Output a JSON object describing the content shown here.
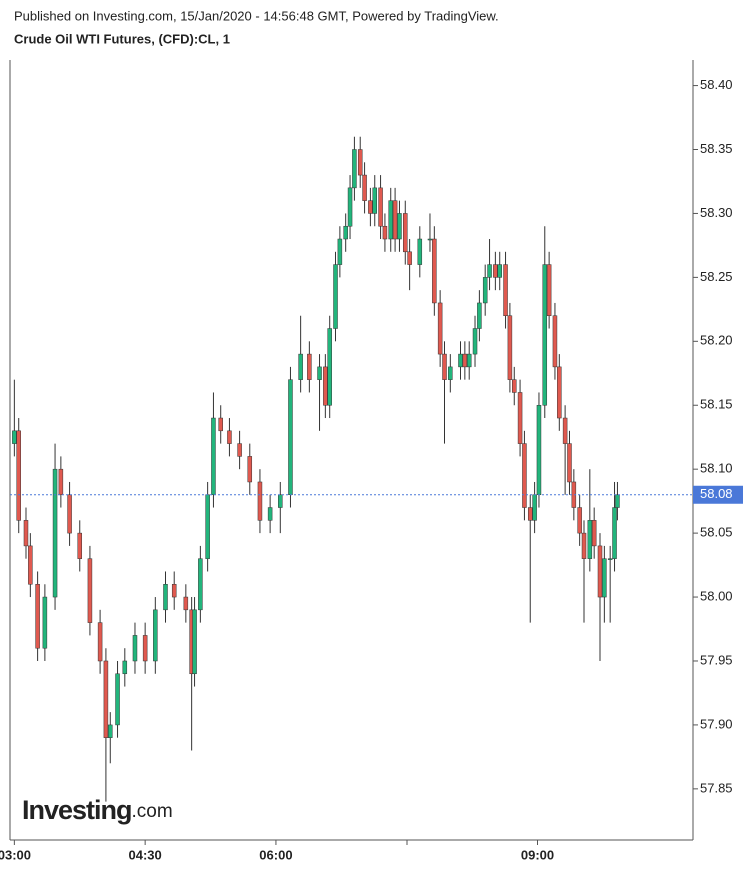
{
  "header": {
    "published": "Published on Investing.com, 15/Jan/2020 - 14:56:48 GMT, Powered by TradingView.",
    "title": "Crude Oil WTI Futures, (CFD):CL, 1"
  },
  "chart_data": {
    "type": "candlestick",
    "x": [
      "03:00",
      "03:03",
      "03:08",
      "03:11",
      "03:16",
      "03:21",
      "03:28",
      "03:32",
      "03:38",
      "03:45",
      "03:52",
      "03:59",
      "04:03",
      "04:06",
      "04:11",
      "04:16",
      "04:23",
      "04:30",
      "04:37",
      "04:44",
      "04:50",
      "04:58",
      "05:02",
      "05:04",
      "05:08",
      "05:13",
      "05:17",
      "05:22",
      "05:28",
      "05:35",
      "05:42",
      "05:49",
      "05:56",
      "06:03",
      "06:10",
      "06:17",
      "06:23",
      "06:30",
      "06:34",
      "06:37",
      "06:41",
      "06:44",
      "06:48",
      "06:51",
      "06:54",
      "06:58",
      "07:01",
      "07:05",
      "07:08",
      "07:12",
      "07:15",
      "07:19",
      "07:22",
      "07:25",
      "07:29",
      "07:32",
      "07:39",
      "07:46",
      "07:49",
      "07:53",
      "07:56",
      "08:00",
      "08:07",
      "08:10",
      "08:13",
      "08:17",
      "08:20",
      "08:24",
      "08:27",
      "08:31",
      "08:34",
      "08:38",
      "08:41",
      "08:44",
      "08:48",
      "08:51",
      "08:55",
      "08:58",
      "09:01",
      "09:05",
      "09:08",
      "09:12",
      "09:15",
      "09:19",
      "09:22",
      "09:25",
      "09:29",
      "09:32",
      "09:36",
      "09:39",
      "09:43",
      "09:46",
      "09:50",
      "09:53",
      "09:55"
    ],
    "open": [
      58.12,
      58.13,
      58.06,
      58.04,
      58.01,
      57.96,
      58.0,
      58.1,
      58.08,
      58.05,
      58.03,
      57.98,
      57.95,
      57.89,
      57.9,
      57.94,
      57.95,
      57.97,
      57.95,
      57.99,
      58.01,
      58.0,
      57.99,
      57.94,
      57.99,
      58.03,
      58.08,
      58.14,
      58.13,
      58.12,
      58.11,
      58.09,
      58.06,
      58.07,
      58.08,
      58.17,
      58.19,
      58.17,
      58.18,
      58.15,
      58.21,
      58.26,
      58.28,
      58.29,
      58.32,
      58.35,
      58.33,
      58.31,
      58.3,
      58.32,
      58.29,
      58.28,
      58.31,
      58.28,
      58.3,
      58.27,
      58.26,
      58.28,
      58.28,
      58.23,
      58.19,
      58.17,
      58.18,
      58.19,
      58.18,
      58.19,
      58.21,
      58.23,
      58.25,
      58.26,
      58.25,
      58.26,
      58.22,
      58.17,
      58.16,
      58.12,
      58.07,
      58.06,
      58.08,
      58.15,
      58.26,
      58.22,
      58.18,
      58.14,
      58.12,
      58.09,
      58.07,
      58.05,
      58.03,
      58.06,
      58.04,
      58.0,
      58.03,
      58.03,
      58.07
    ],
    "high": [
      58.17,
      58.14,
      58.07,
      58.05,
      58.02,
      58.01,
      58.12,
      58.11,
      58.09,
      58.06,
      58.04,
      57.99,
      57.96,
      57.91,
      57.95,
      57.96,
      57.98,
      57.98,
      58.0,
      58.02,
      58.02,
      58.01,
      58.0,
      58.0,
      58.04,
      58.09,
      58.16,
      58.15,
      58.14,
      58.13,
      58.12,
      58.1,
      58.08,
      58.09,
      58.18,
      58.22,
      58.2,
      58.19,
      58.19,
      58.22,
      58.27,
      58.29,
      58.3,
      58.33,
      58.36,
      58.36,
      58.34,
      58.32,
      58.33,
      58.33,
      58.3,
      58.32,
      58.32,
      58.31,
      58.31,
      58.28,
      58.29,
      58.3,
      58.29,
      58.24,
      58.2,
      58.19,
      58.2,
      58.2,
      58.2,
      58.22,
      58.24,
      58.26,
      58.28,
      58.27,
      58.27,
      58.27,
      58.23,
      58.18,
      58.17,
      58.13,
      58.08,
      58.09,
      58.16,
      58.29,
      58.27,
      58.23,
      58.19,
      58.15,
      58.13,
      58.1,
      58.08,
      58.06,
      58.1,
      58.07,
      58.05,
      58.04,
      58.04,
      58.09,
      58.09
    ],
    "low": [
      58.11,
      58.05,
      58.03,
      58.0,
      57.95,
      57.95,
      57.99,
      58.07,
      58.04,
      58.02,
      57.97,
      57.94,
      57.84,
      57.87,
      57.89,
      57.93,
      57.94,
      57.94,
      57.94,
      57.98,
      57.99,
      57.98,
      57.88,
      57.93,
      57.98,
      58.02,
      58.07,
      58.12,
      58.11,
      58.1,
      58.08,
      58.05,
      58.05,
      58.05,
      58.07,
      58.16,
      58.16,
      58.13,
      58.14,
      58.14,
      58.2,
      58.25,
      58.27,
      58.28,
      58.31,
      58.32,
      58.3,
      58.29,
      58.29,
      58.28,
      58.27,
      58.27,
      58.27,
      58.27,
      58.26,
      58.24,
      58.25,
      58.27,
      58.22,
      58.18,
      58.12,
      58.16,
      58.17,
      58.17,
      58.17,
      58.18,
      58.2,
      58.22,
      58.24,
      58.24,
      58.24,
      58.21,
      58.16,
      58.15,
      58.11,
      58.06,
      57.98,
      58.05,
      58.07,
      58.14,
      58.21,
      58.17,
      58.13,
      58.08,
      58.08,
      58.06,
      58.04,
      57.98,
      58.02,
      58.03,
      57.95,
      57.98,
      57.98,
      58.02,
      58.06
    ],
    "close": [
      58.13,
      58.06,
      58.04,
      58.01,
      57.96,
      58.0,
      58.1,
      58.08,
      58.05,
      58.03,
      57.98,
      57.95,
      57.89,
      57.9,
      57.94,
      57.95,
      57.97,
      57.95,
      57.99,
      58.01,
      58.0,
      57.99,
      57.94,
      57.99,
      58.03,
      58.08,
      58.14,
      58.13,
      58.12,
      58.11,
      58.09,
      58.06,
      58.07,
      58.08,
      58.17,
      58.19,
      58.17,
      58.18,
      58.15,
      58.21,
      58.26,
      58.28,
      58.29,
      58.32,
      58.35,
      58.33,
      58.31,
      58.3,
      58.32,
      58.29,
      58.28,
      58.31,
      58.28,
      58.3,
      58.27,
      58.26,
      58.28,
      58.28,
      58.23,
      58.19,
      58.17,
      58.18,
      58.19,
      58.18,
      58.19,
      58.21,
      58.23,
      58.25,
      58.26,
      58.25,
      58.26,
      58.22,
      58.17,
      58.16,
      58.12,
      58.07,
      58.06,
      58.08,
      58.15,
      58.26,
      58.22,
      58.18,
      58.14,
      58.12,
      58.09,
      58.07,
      58.05,
      58.03,
      58.06,
      58.04,
      58.0,
      58.03,
      58.03,
      58.07,
      58.08
    ],
    "up_color": "#22b57c",
    "down_color": "#e0594f",
    "wick_color": "#333333",
    "xlim": [
      "02:57",
      "10:47"
    ],
    "xticks": [
      "03:00",
      "04:30",
      "06:00",
      "09:00"
    ],
    "ylim": [
      57.81,
      58.42
    ],
    "yticks": [
      57.85,
      {
        "value": 57.9,
        "label": "57.90"
      },
      57.95,
      {
        "value": 58.0,
        "label": "58.00"
      },
      58.05,
      {
        "value": 58.1,
        "label": "58.10"
      },
      58.15,
      {
        "value": 58.2,
        "label": "58.20"
      },
      58.25,
      {
        "value": 58.3,
        "label": "58.30"
      },
      58.35,
      {
        "value": 58.4,
        "label": "58.40"
      }
    ],
    "last_price": 58.08,
    "last_price_color": "#4a78d8",
    "watermark_brand": "Investing",
    "watermark_suffix": ".com"
  }
}
